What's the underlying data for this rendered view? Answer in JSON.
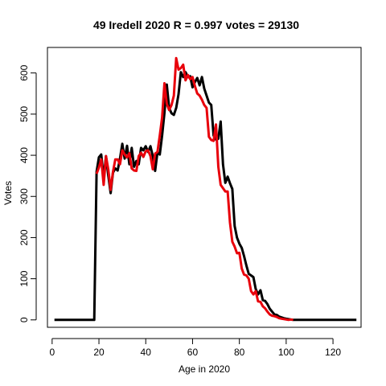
{
  "chart_data": {
    "type": "line",
    "title": "49 Iredell 2020 R = 0.997 votes = 29130",
    "xlabel": "Age in 2020",
    "ylabel": "Votes",
    "xlim": [
      -2,
      132
    ],
    "ylim": [
      -18,
      662
    ],
    "xticks": [
      0,
      20,
      40,
      60,
      80,
      100,
      120
    ],
    "yticks": [
      0,
      100,
      200,
      300,
      400,
      500,
      600
    ],
    "colors": {
      "series1": "#000000",
      "series2": "#e8000b"
    },
    "series": [
      {
        "color": "#000000",
        "points": [
          [
            1,
            0
          ],
          [
            18,
            0
          ],
          [
            19,
            360
          ],
          [
            20,
            395
          ],
          [
            21,
            402
          ],
          [
            22,
            345
          ],
          [
            23,
            398
          ],
          [
            24,
            350
          ],
          [
            25,
            308
          ],
          [
            26,
            358
          ],
          [
            27,
            368
          ],
          [
            28,
            363
          ],
          [
            29,
            392
          ],
          [
            30,
            428
          ],
          [
            31,
            392
          ],
          [
            32,
            423
          ],
          [
            33,
            378
          ],
          [
            34,
            418
          ],
          [
            35,
            372
          ],
          [
            36,
            386
          ],
          [
            37,
            378
          ],
          [
            38,
            418
          ],
          [
            39,
            412
          ],
          [
            40,
            422
          ],
          [
            41,
            408
          ],
          [
            42,
            422
          ],
          [
            43,
            398
          ],
          [
            44,
            362
          ],
          [
            45,
            407
          ],
          [
            46,
            402
          ],
          [
            47,
            448
          ],
          [
            48,
            503
          ],
          [
            49,
            572
          ],
          [
            50,
            515
          ],
          [
            51,
            502
          ],
          [
            52,
            498
          ],
          [
            53,
            515
          ],
          [
            54,
            548
          ],
          [
            55,
            602
          ],
          [
            56,
            590
          ],
          [
            57,
            602
          ],
          [
            58,
            590
          ],
          [
            59,
            592
          ],
          [
            60,
            565
          ],
          [
            61,
            578
          ],
          [
            62,
            588
          ],
          [
            63,
            570
          ],
          [
            64,
            590
          ],
          [
            65,
            562
          ],
          [
            66,
            545
          ],
          [
            67,
            528
          ],
          [
            68,
            522
          ],
          [
            69,
            448
          ],
          [
            70,
            438
          ],
          [
            71,
            440
          ],
          [
            72,
            482
          ],
          [
            73,
            378
          ],
          [
            74,
            333
          ],
          [
            75,
            348
          ],
          [
            76,
            332
          ],
          [
            77,
            318
          ],
          [
            78,
            228
          ],
          [
            79,
            200
          ],
          [
            80,
            185
          ],
          [
            81,
            175
          ],
          [
            82,
            155
          ],
          [
            83,
            132
          ],
          [
            84,
            112
          ],
          [
            85,
            108
          ],
          [
            86,
            104
          ],
          [
            87,
            75
          ],
          [
            88,
            62
          ],
          [
            89,
            72
          ],
          [
            90,
            48
          ],
          [
            91,
            46
          ],
          [
            92,
            38
          ],
          [
            93,
            27
          ],
          [
            94,
            20
          ],
          [
            95,
            13
          ],
          [
            96,
            12
          ],
          [
            97,
            8
          ],
          [
            98,
            6
          ],
          [
            99,
            4
          ],
          [
            100,
            3
          ],
          [
            101,
            2
          ],
          [
            102,
            1
          ],
          [
            103,
            0
          ],
          [
            130,
            0
          ]
        ]
      },
      {
        "color": "#e8000b",
        "points": [
          [
            19,
            355
          ],
          [
            20,
            370
          ],
          [
            21,
            390
          ],
          [
            22,
            328
          ],
          [
            23,
            398
          ],
          [
            24,
            365
          ],
          [
            25,
            316
          ],
          [
            26,
            360
          ],
          [
            27,
            390
          ],
          [
            28,
            390
          ],
          [
            29,
            378
          ],
          [
            30,
            412
          ],
          [
            31,
            402
          ],
          [
            32,
            395
          ],
          [
            33,
            405
          ],
          [
            34,
            368
          ],
          [
            35,
            363
          ],
          [
            36,
            362
          ],
          [
            37,
            398
          ],
          [
            38,
            406
          ],
          [
            39,
            396
          ],
          [
            40,
            410
          ],
          [
            41,
            412
          ],
          [
            42,
            398
          ],
          [
            43,
            366
          ],
          [
            44,
            404
          ],
          [
            45,
            408
          ],
          [
            46,
            448
          ],
          [
            47,
            492
          ],
          [
            48,
            575
          ],
          [
            49,
            525
          ],
          [
            50,
            510
          ],
          [
            51,
            522
          ],
          [
            52,
            545
          ],
          [
            53,
            636
          ],
          [
            54,
            608
          ],
          [
            55,
            612
          ],
          [
            56,
            620
          ],
          [
            57,
            582
          ],
          [
            58,
            595
          ],
          [
            59,
            585
          ],
          [
            60,
            590
          ],
          [
            61,
            568
          ],
          [
            62,
            550
          ],
          [
            63,
            545
          ],
          [
            64,
            535
          ],
          [
            65,
            522
          ],
          [
            66,
            515
          ],
          [
            67,
            445
          ],
          [
            68,
            437
          ],
          [
            69,
            435
          ],
          [
            70,
            475
          ],
          [
            71,
            372
          ],
          [
            72,
            328
          ],
          [
            73,
            320
          ],
          [
            74,
            312
          ],
          [
            75,
            312
          ],
          [
            76,
            236
          ],
          [
            77,
            190
          ],
          [
            78,
            178
          ],
          [
            79,
            162
          ],
          [
            80,
            163
          ],
          [
            81,
            125
          ],
          [
            82,
            110
          ],
          [
            83,
            108
          ],
          [
            84,
            100
          ],
          [
            85,
            70
          ],
          [
            86,
            62
          ],
          [
            87,
            70
          ],
          [
            88,
            45
          ],
          [
            89,
            44
          ],
          [
            90,
            33
          ],
          [
            91,
            28
          ],
          [
            92,
            20
          ],
          [
            93,
            13
          ],
          [
            94,
            10
          ],
          [
            95,
            9
          ],
          [
            96,
            7
          ],
          [
            97,
            4
          ],
          [
            98,
            3
          ],
          [
            99,
            2
          ],
          [
            100,
            1
          ],
          [
            101,
            0
          ],
          [
            102,
            1
          ],
          [
            103,
            0
          ]
        ]
      }
    ]
  }
}
